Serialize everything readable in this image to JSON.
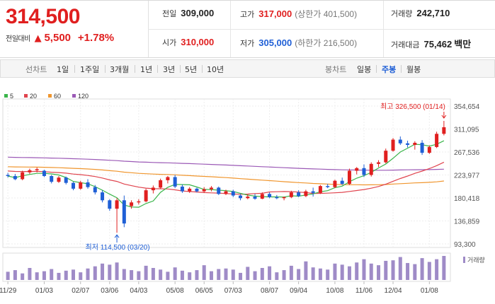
{
  "header": {
    "current_price": "314,500",
    "change_label": "전일대비",
    "change_arrow": "▲",
    "change_value": "5,500",
    "change_pct": "+1.78%"
  },
  "stats": {
    "prev_close": {
      "label": "전일",
      "value": "309,000"
    },
    "high": {
      "label": "고가",
      "value": "317,000",
      "sub": "(상한가 401,500)"
    },
    "volume": {
      "label": "거래량",
      "value": "242,710"
    },
    "open": {
      "label": "시가",
      "value": "310,000"
    },
    "low": {
      "label": "저가",
      "value": "305,000",
      "sub": "(하한가 216,500)"
    },
    "amount": {
      "label": "거래대금",
      "value": "75,462",
      "unit": "백만"
    }
  },
  "tabs": {
    "candle_label": "선차트",
    "periods": [
      "1일",
      "1주일",
      "3개월",
      "1년",
      "3년",
      "5년",
      "10년"
    ],
    "bong_label": "봉차트",
    "bong": [
      "일봉",
      "주봉",
      "월봉"
    ],
    "selected_bong": "주봉"
  },
  "colors": {
    "up": "#e01f1f",
    "down": "#1f5fd6",
    "ma5": "#3ab54a",
    "ma20": "#e0444e",
    "ma60": "#f0962e",
    "ma120": "#9b59b6",
    "volume": "#9f8bc7"
  },
  "chart_data": {
    "type": "candlestick",
    "legend": [
      {
        "name": "5",
        "color": "#3ab54a"
      },
      {
        "name": "20",
        "color": "#e0444e"
      },
      {
        "name": "60",
        "color": "#f0962e"
      },
      {
        "name": "120",
        "color": "#9b59b6"
      }
    ],
    "ylim": [
      93300,
      354654
    ],
    "y_ticks": [
      "354,654",
      "311,095",
      "267,536",
      "223,977",
      "180,418",
      "136,859",
      "93,300"
    ],
    "y_tick_values": [
      354654,
      311095,
      267536,
      223977,
      180418,
      136859,
      93300
    ],
    "x_ticks": [
      "11/29",
      "01/03",
      "02/07",
      "03/06",
      "04/03",
      "05/08",
      "06/05",
      "07/03",
      "08/07",
      "09/04",
      "10/08",
      "11/06",
      "12/04",
      "01/08"
    ],
    "x_tick_index": [
      0,
      5,
      10,
      14,
      18,
      23,
      27,
      31,
      36,
      40,
      45,
      49,
      53,
      58
    ],
    "max_label": "최고 326,500 (01/14)",
    "min_label": "최저 114,500 (03/20)",
    "volume_label": "거래량",
    "candles": [
      [
        224000,
        228000,
        219000,
        222000
      ],
      [
        222000,
        226000,
        214000,
        216000
      ],
      [
        216000,
        232000,
        214000,
        229000
      ],
      [
        229000,
        236000,
        226000,
        233000
      ],
      [
        233000,
        238000,
        229000,
        235000
      ],
      [
        232000,
        234000,
        220000,
        222000
      ],
      [
        222000,
        224000,
        208000,
        211000
      ],
      [
        211000,
        222000,
        209000,
        219000
      ],
      [
        219000,
        221000,
        206000,
        209000
      ],
      [
        209000,
        211000,
        195000,
        198000
      ],
      [
        198000,
        213000,
        196000,
        210000
      ],
      [
        210000,
        216000,
        198000,
        201000
      ],
      [
        201000,
        205000,
        187000,
        191000
      ],
      [
        191000,
        195000,
        172000,
        176000
      ],
      [
        176000,
        178000,
        156000,
        160000
      ],
      [
        160000,
        180000,
        114500,
        176000
      ],
      [
        176000,
        185000,
        125000,
        132000
      ],
      [
        165000,
        176000,
        160000,
        172000
      ],
      [
        172000,
        178000,
        168000,
        174000
      ],
      [
        174000,
        198000,
        172000,
        195000
      ],
      [
        195000,
        204000,
        189000,
        200000
      ],
      [
        200000,
        217000,
        198000,
        214000
      ],
      [
        214000,
        222000,
        208000,
        220000
      ],
      [
        220000,
        224000,
        199000,
        202000
      ],
      [
        202000,
        206000,
        190000,
        193000
      ],
      [
        193000,
        201000,
        190000,
        198000
      ],
      [
        198000,
        200000,
        191000,
        193000
      ],
      [
        193000,
        201000,
        190000,
        197000
      ],
      [
        197000,
        203000,
        193000,
        200000
      ],
      [
        200000,
        202000,
        186000,
        188000
      ],
      [
        188000,
        196000,
        186000,
        193000
      ],
      [
        193000,
        196000,
        182000,
        185000
      ],
      [
        185000,
        188000,
        176000,
        180000
      ],
      [
        180000,
        187000,
        178000,
        183000
      ],
      [
        183000,
        188000,
        177000,
        179000
      ],
      [
        179000,
        191000,
        178000,
        188000
      ],
      [
        188000,
        191000,
        180000,
        182000
      ],
      [
        182000,
        186000,
        178000,
        180000
      ],
      [
        180000,
        183000,
        176000,
        182000
      ],
      [
        182000,
        194000,
        180000,
        191000
      ],
      [
        191000,
        195000,
        182000,
        184000
      ],
      [
        184000,
        196000,
        182000,
        193000
      ],
      [
        193000,
        200000,
        183000,
        190000
      ],
      [
        190000,
        205000,
        188000,
        203000
      ],
      [
        203000,
        207000,
        199000,
        201000
      ],
      [
        201000,
        215000,
        199000,
        213000
      ],
      [
        213000,
        219000,
        205000,
        207000
      ],
      [
        207000,
        236000,
        205000,
        232000
      ],
      [
        232000,
        239000,
        225000,
        237000
      ],
      [
        237000,
        244000,
        220000,
        224000
      ],
      [
        224000,
        248000,
        221000,
        245000
      ],
      [
        245000,
        252000,
        239000,
        248000
      ],
      [
        248000,
        274000,
        246000,
        270000
      ],
      [
        270000,
        294000,
        268000,
        291000
      ],
      [
        291000,
        297000,
        281000,
        284000
      ],
      [
        284000,
        289000,
        276000,
        281000
      ],
      [
        281000,
        288000,
        272000,
        285000
      ],
      [
        285000,
        290000,
        262000,
        266000
      ],
      [
        266000,
        280000,
        264000,
        277000
      ],
      [
        277000,
        306000,
        275000,
        302000
      ],
      [
        302000,
        326500,
        299000,
        314500
      ]
    ],
    "volumes": [
      15,
      18,
      12,
      22,
      14,
      16,
      20,
      13,
      17,
      19,
      14,
      21,
      25,
      30,
      28,
      32,
      20,
      18,
      16,
      26,
      22,
      19,
      15,
      23,
      17,
      14,
      18,
      27,
      16,
      20,
      21,
      19,
      13,
      24,
      16,
      22,
      25,
      14,
      18,
      26,
      20,
      34,
      23,
      21,
      19,
      30,
      28,
      25,
      32,
      38,
      30,
      27,
      35,
      36,
      42,
      31,
      29,
      40,
      33,
      38,
      44
    ]
  }
}
